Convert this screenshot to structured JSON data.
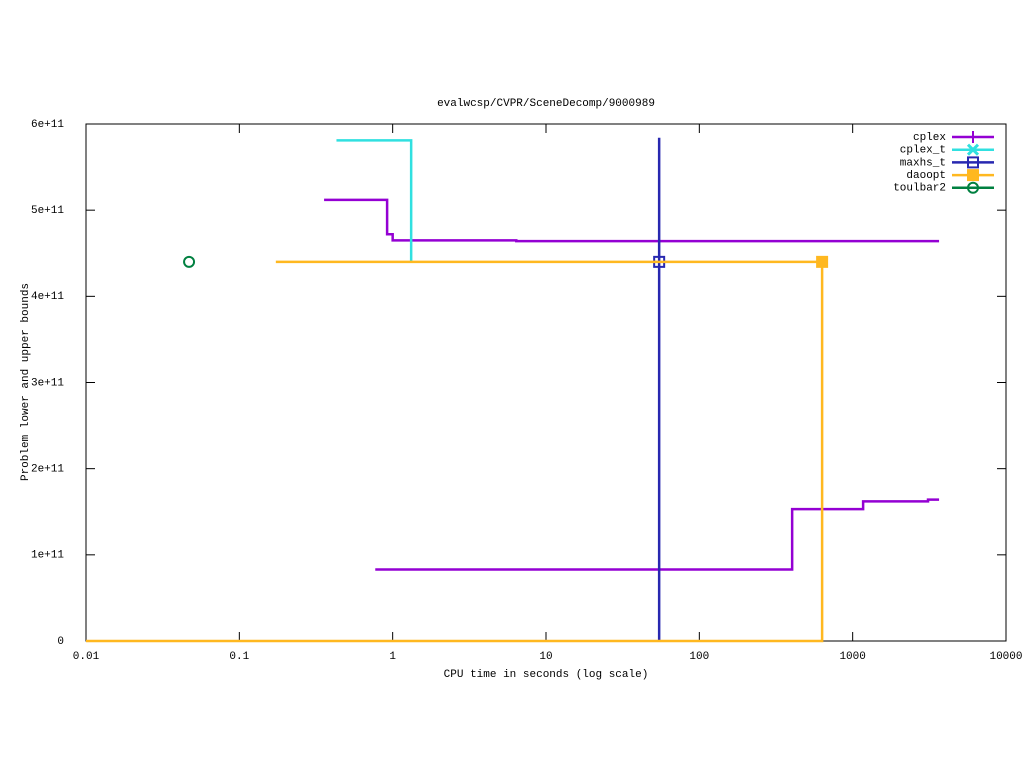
{
  "chart_data": {
    "type": "line",
    "title": "evalwcsp/CVPR/SceneDecomp/9000989",
    "x_label": "CPU time in seconds (log scale)",
    "y_label": "Problem lower and upper bounds",
    "x_scale": "log",
    "legend": "top-right",
    "xlim": [
      0.01,
      10000
    ],
    "xticks": [
      0.01,
      0.1,
      1,
      10,
      100,
      1000,
      10000
    ],
    "ylim": [
      0,
      600000000000
    ],
    "yticks": [
      0,
      {
        "value": 100000000000,
        "label": "1e+11"
      },
      {
        "value": 200000000000,
        "label": "2e+11"
      },
      {
        "value": 300000000000,
        "label": "3e+11"
      },
      {
        "value": 400000000000,
        "label": "4e+11"
      },
      {
        "value": 500000000000,
        "label": "5e+11"
      },
      {
        "value": 600000000000,
        "label": "6e+11"
      }
    ],
    "series": [
      {
        "name": "cplex",
        "color": "#9400d3",
        "marker": "plus",
        "x": [
          0.357,
          0.92,
          0.92,
          1.0,
          1.0,
          6.4,
          6.4,
          3660,
          null,
          0.77,
          403,
          403,
          1170,
          1170,
          3100,
          3100,
          3660
        ],
        "values": [
          512000000000,
          512000000000,
          472000000000,
          472000000000,
          465000000000,
          465000000000,
          464000000000,
          464000000000,
          null,
          83000000000,
          83000000000,
          153000000000,
          153000000000,
          162000000000,
          162000000000,
          164000000000,
          164000000000
        ]
      },
      {
        "name": "cplex_t",
        "color": "#30e0e0",
        "marker": "cross",
        "x": [
          0.43,
          1.32,
          1.32
        ],
        "values": [
          581000000000,
          581000000000,
          440000000000
        ]
      },
      {
        "name": "maxhs_t",
        "color": "#2828b0",
        "marker": "square",
        "x": [
          54.7,
          54.7
        ],
        "values": [
          584000000000,
          0
        ],
        "points": {
          "x": [
            54.7
          ],
          "values": [
            440000000000
          ]
        }
      },
      {
        "name": "daoopt",
        "color": "#ffb820",
        "marker": "square-filled",
        "x": [
          0.173,
          632,
          632,
          0.01
        ],
        "values": [
          440000000000,
          440000000000,
          0,
          0
        ],
        "points": {
          "x": [
            632
          ],
          "values": [
            440000000000
          ]
        }
      },
      {
        "name": "toulbar2",
        "color": "#008040",
        "marker": "circle",
        "x": [],
        "values": [],
        "points": {
          "x": [
            0.047
          ],
          "values": [
            440000000000
          ]
        }
      }
    ]
  }
}
